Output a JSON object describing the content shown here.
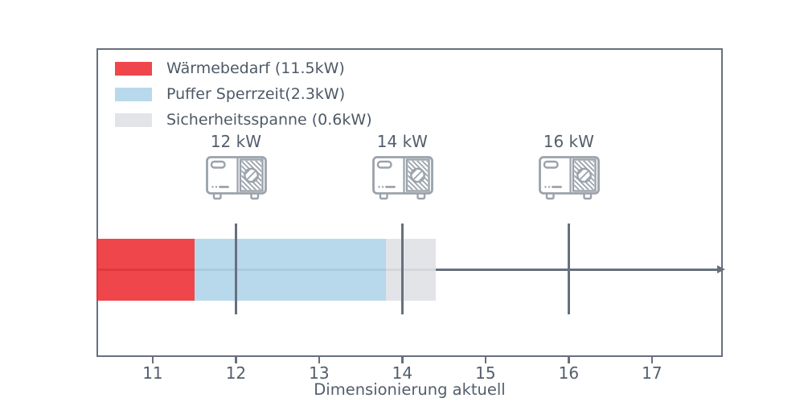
{
  "chart_data": {
    "type": "bar",
    "orientation": "horizontal-stacked",
    "title": "",
    "xlabel": "Dimensionierung aktuell",
    "x_ticks": [
      11,
      12,
      13,
      14,
      15,
      16,
      17
    ],
    "x_range": [
      10.324,
      17.852
    ],
    "grid": false,
    "legend_position": "upper-left-inside",
    "bar_opacity": 0.9,
    "segments": [
      {
        "name": "waermebedarf",
        "label": "Wärmebedarf (11.5kW)",
        "value_kw": 11.5,
        "from": 10.324,
        "to": 11.5,
        "color": "#ec3237"
      },
      {
        "name": "puffer-sperrzeit",
        "label": "Puffer Sperrzeit(2.3kW)",
        "value_kw": 2.3,
        "from": 11.5,
        "to": 13.8,
        "color": "#b0d5e9"
      },
      {
        "name": "sicherheitsspanne",
        "label": "Sicherheitsspanne (0.6kW)",
        "value_kw": 0.6,
        "from": 13.8,
        "to": 14.4,
        "color": "#dfe1e6"
      }
    ],
    "markers": [
      {
        "value": 12,
        "label": "12 kW",
        "icon": "heat-pump-icon"
      },
      {
        "value": 14,
        "label": "14 kW",
        "icon": "heat-pump-icon"
      },
      {
        "value": 16,
        "label": "16 kW",
        "icon": "heat-pump-icon"
      }
    ],
    "arrow": {
      "from": 10.324,
      "to": 17.79
    }
  },
  "colors": {
    "axis": "#67707d",
    "text": "#535e6c",
    "icon": "#9ba2ab",
    "background": "#ffffff"
  }
}
